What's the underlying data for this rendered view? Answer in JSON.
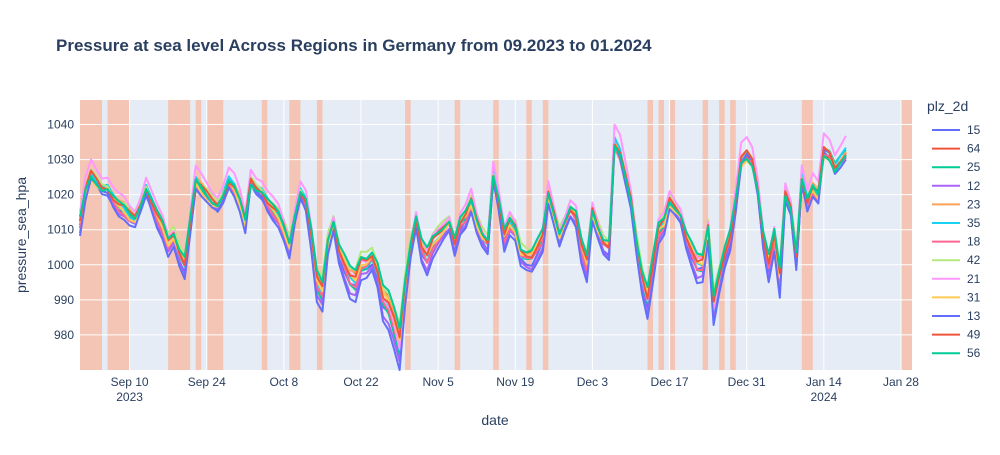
{
  "chart_data": {
    "type": "line",
    "title": "Pressure at sea level Across Regions in Germany from 09.2023 to 01.2024",
    "xlabel": "date",
    "ylabel": "pressure_sea_hpa",
    "x_start": "2023-09-01",
    "x_range": [
      "2023-09-01",
      "2024-01-30"
    ],
    "ylim": [
      970,
      1047
    ],
    "x_ticks": [
      {
        "date": "2023-09-10",
        "label": "Sep 10",
        "sub": "2023"
      },
      {
        "date": "2023-09-24",
        "label": "Sep 24",
        "sub": ""
      },
      {
        "date": "2023-10-08",
        "label": "Oct 8",
        "sub": ""
      },
      {
        "date": "2023-10-22",
        "label": "Oct 22",
        "sub": ""
      },
      {
        "date": "2023-11-05",
        "label": "Nov 5",
        "sub": ""
      },
      {
        "date": "2023-11-19",
        "label": "Nov 19",
        "sub": ""
      },
      {
        "date": "2023-12-03",
        "label": "Dec 3",
        "sub": ""
      },
      {
        "date": "2023-12-17",
        "label": "Dec 17",
        "sub": ""
      },
      {
        "date": "2023-12-31",
        "label": "Dec 31",
        "sub": ""
      },
      {
        "date": "2024-01-14",
        "label": "Jan 14",
        "sub": "2024"
      },
      {
        "date": "2024-01-28",
        "label": "Jan 28",
        "sub": ""
      }
    ],
    "y_ticks": [
      980,
      990,
      1000,
      1010,
      1020,
      1030,
      1040
    ],
    "legend_title": "plz_2d",
    "legend_position": "right",
    "grid": true,
    "highlight_ranges": [
      [
        "2023-09-01",
        "2023-09-05"
      ],
      [
        "2023-09-06",
        "2023-09-09"
      ],
      [
        "2023-09-09",
        "2023-09-10"
      ],
      [
        "2023-09-17",
        "2023-09-21"
      ],
      [
        "2023-09-22",
        "2023-09-23"
      ],
      [
        "2023-09-24",
        "2023-09-27"
      ],
      [
        "2023-10-04",
        "2023-10-05"
      ],
      [
        "2023-10-09",
        "2023-10-11"
      ],
      [
        "2023-10-14",
        "2023-10-15"
      ],
      [
        "2023-10-30",
        "2023-10-31"
      ],
      [
        "2023-11-08",
        "2023-11-09"
      ],
      [
        "2023-11-15",
        "2023-11-16"
      ],
      [
        "2023-11-21",
        "2023-11-22"
      ],
      [
        "2023-11-24",
        "2023-11-25"
      ],
      [
        "2023-12-13",
        "2023-12-14"
      ],
      [
        "2023-12-15",
        "2023-12-16"
      ],
      [
        "2023-12-17",
        "2023-12-18"
      ],
      [
        "2023-12-23",
        "2023-12-24"
      ],
      [
        "2023-12-26",
        "2023-12-27"
      ],
      [
        "2023-12-28",
        "2023-12-29"
      ],
      [
        "2024-01-10",
        "2024-01-12"
      ],
      [
        "2024-01-28",
        "2024-01-30"
      ]
    ],
    "highlight_color": "#f4c4b4",
    "mean_series_daily": [
      1012,
      1021,
      1026,
      1024,
      1022,
      1022,
      1019,
      1017,
      1016,
      1014,
      1013,
      1017,
      1022,
      1018,
      1014,
      1011,
      1006,
      1008,
      1003,
      1000,
      1012,
      1024,
      1022,
      1020,
      1018,
      1017,
      1020,
      1024,
      1022,
      1018,
      1012,
      1024,
      1022,
      1021,
      1018,
      1016,
      1014,
      1010,
      1005,
      1014,
      1021,
      1018,
      1008,
      995,
      992,
      1006,
      1012,
      1004,
      1000,
      996,
      995,
      1000,
      1000,
      1002,
      998,
      990,
      988,
      983,
      977,
      993,
      1005,
      1013,
      1005,
      1002,
      1006,
      1008,
      1010,
      1012,
      1006,
      1012,
      1014,
      1018,
      1012,
      1008,
      1006,
      1026,
      1018,
      1008,
      1012,
      1010,
      1003,
      1002,
      1002,
      1005,
      1008,
      1020,
      1014,
      1008,
      1012,
      1016,
      1014,
      1005,
      1000,
      1015,
      1010,
      1006,
      1005,
      1035,
      1032,
      1025,
      1018,
      1006,
      996,
      990,
      1000,
      1010,
      1012,
      1018,
      1016,
      1014,
      1008,
      1004,
      1000,
      1000,
      1010,
      988,
      996,
      1003,
      1008,
      1018,
      1030,
      1032,
      1030,
      1022,
      1008,
      1000,
      1008,
      996,
      1020,
      1016,
      1002,
      1025,
      1018,
      1022,
      1020,
      1033,
      1032,
      1028,
      1030,
      1032
    ],
    "series": [
      {
        "name": "15",
        "color": "#636efa",
        "offset": -1.5,
        "amp": 1.0
      },
      {
        "name": "64",
        "color": "#ef553b",
        "offset": 0.8,
        "amp": 0.92
      },
      {
        "name": "25",
        "color": "#00cc96",
        "offset": -0.5,
        "amp": 1.05
      },
      {
        "name": "12",
        "color": "#ab63fa",
        "offset": -2.2,
        "amp": 1.08
      },
      {
        "name": "23",
        "color": "#ffa15a",
        "offset": 1.2,
        "amp": 0.95
      },
      {
        "name": "35",
        "color": "#19d3f3",
        "offset": 0.2,
        "amp": 1.02
      },
      {
        "name": "18",
        "color": "#ff6692",
        "offset": -1.0,
        "amp": 0.98
      },
      {
        "name": "42",
        "color": "#b6e880",
        "offset": 1.8,
        "amp": 0.9
      },
      {
        "name": "21",
        "color": "#ff97ff",
        "offset": 2.4,
        "amp": 1.1
      },
      {
        "name": "31",
        "color": "#fecb52",
        "offset": -0.2,
        "amp": 0.93
      },
      {
        "name": "13",
        "color": "#636efa",
        "offset": -3.0,
        "amp": 1.12
      },
      {
        "name": "49",
        "color": "#ef553b",
        "offset": 0.5,
        "amp": 0.97
      },
      {
        "name": "56",
        "color": "#00cc96",
        "offset": 1.0,
        "amp": 0.88
      }
    ]
  }
}
